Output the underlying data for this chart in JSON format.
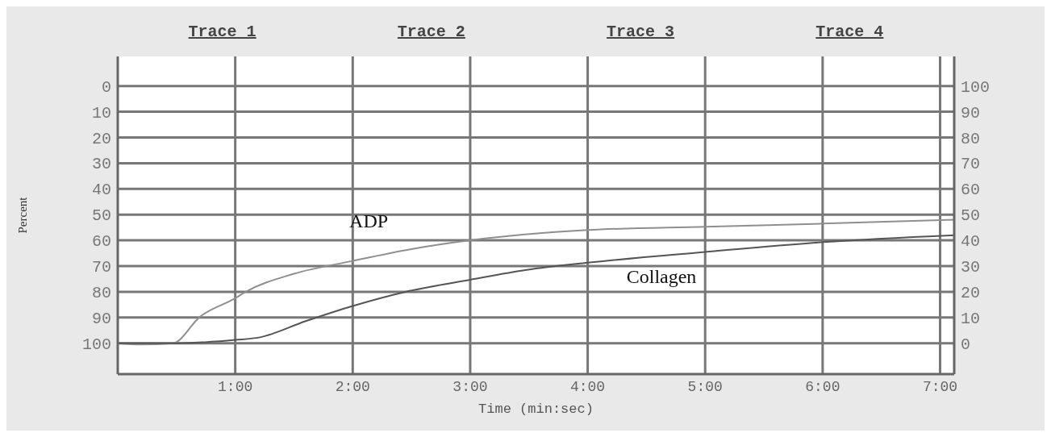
{
  "chart_data": {
    "type": "line",
    "xlabel": "Time (min:sec)",
    "ylabel": "Percent",
    "annotations": [
      "Trace 1",
      "Trace 2",
      "Trace 3",
      "Trace 4"
    ],
    "series": [
      {
        "name": "ADP",
        "color": "#8f8f8f",
        "x": [
          0,
          0.2,
          0.47,
          0.7,
          1.0,
          1.09,
          1.5,
          2.0,
          2.5,
          3.0,
          4.0,
          5.0,
          6.0,
          7.12
        ],
        "values": [
          100,
          100.5,
          100,
          89.7,
          82.5,
          80,
          73,
          68,
          63.4,
          60,
          56,
          54.7,
          53.5,
          52
        ]
      },
      {
        "name": "Collagen",
        "color": "#555555",
        "x": [
          0,
          0.5,
          1.0,
          1.21,
          1.6,
          2.0,
          2.45,
          3.0,
          3.48,
          4.0,
          5.0,
          6.0,
          7.12
        ],
        "values": [
          100,
          100,
          98.7,
          97.7,
          91.4,
          85.5,
          80,
          75.3,
          71.5,
          68.7,
          64.5,
          60.7,
          58
        ]
      }
    ],
    "xlim": [
      0,
      7.12
    ],
    "xticks": [
      {
        "value": 1,
        "label": "1:00"
      },
      {
        "value": 2,
        "label": "2:00"
      },
      {
        "value": 3,
        "label": "3:00"
      },
      {
        "value": 4,
        "label": "4:00"
      },
      {
        "value": 5,
        "label": "5:00"
      },
      {
        "value": 6,
        "label": "6:00"
      },
      {
        "value": 7,
        "label": "7:00"
      }
    ],
    "ylim": [
      112,
      -11.5
    ],
    "yticks": [
      0,
      10,
      20,
      30,
      40,
      50,
      60,
      70,
      80,
      90,
      100
    ],
    "y2lim": [
      -12,
      111.5
    ],
    "y2ticks": [
      0,
      10,
      20,
      30,
      40,
      50,
      60,
      70,
      80,
      90,
      100
    ],
    "grid": true,
    "legend": false,
    "marker": "none",
    "line_style": "solid"
  }
}
